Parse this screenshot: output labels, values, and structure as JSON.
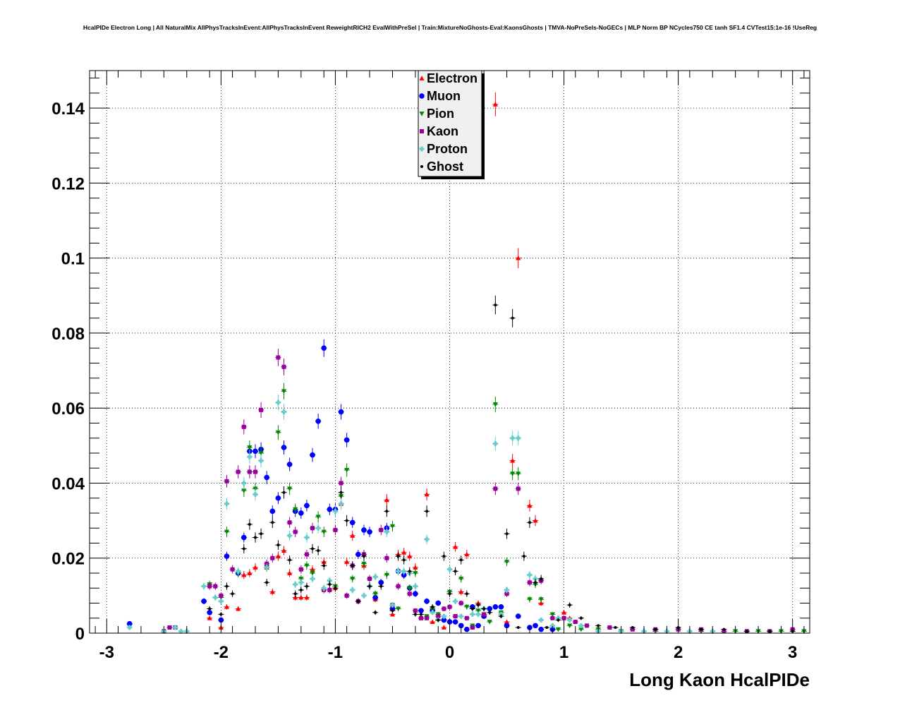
{
  "chart_data": {
    "type": "scatter",
    "title": "HcalPIDe Electron Long | All NaturalMix AllPhysTracksInEvent:AllPhysTracksInEvent ReweightRICH2 EvalWithPreSel | Train:MixtureNoGhosts-Eval:KaonsGhosts | TMVA-NoPreSels-NoGECs | MLP Norm BP NCycles750 CE tanh SF1.4 CVTest15:1e-16 !UseReg",
    "xlabel": "Long Kaon HcalPIDe",
    "ylabel": "",
    "xlim": [
      -3.15,
      3.15
    ],
    "ylim": [
      0,
      0.15
    ],
    "xticks": [
      -3,
      -2,
      -1,
      0,
      1,
      2,
      3
    ],
    "yticks": [
      0,
      0.02,
      0.04,
      0.06,
      0.08,
      0.1,
      0.12,
      0.14
    ],
    "xtick_labels": [
      "-3",
      "-2",
      "-1",
      "0",
      "1",
      "2",
      "3"
    ],
    "ytick_labels": [
      "0",
      "0.02",
      "0.04",
      "0.06",
      "0.08",
      "0.1",
      "0.12",
      "0.14"
    ],
    "grid": true,
    "legend_position": "top-center",
    "series": [
      {
        "name": "Electron",
        "color": "#ff0000",
        "marker": "triangle-up",
        "x": [
          -2.1,
          -2.0,
          -1.95,
          -1.85,
          -1.8,
          -1.75,
          -1.7,
          -1.6,
          -1.55,
          -1.5,
          -1.45,
          -1.4,
          -1.35,
          -1.3,
          -1.25,
          -1.2,
          -1.1,
          -1.0,
          -0.95,
          -0.9,
          -0.85,
          -0.75,
          -0.65,
          -0.55,
          -0.5,
          -0.45,
          -0.4,
          -0.35,
          -0.3,
          -0.25,
          -0.2,
          -0.15,
          -0.1,
          -0.05,
          0.05,
          0.1,
          0.15,
          0.25,
          0.3,
          0.4,
          0.5,
          0.55,
          0.6,
          0.7,
          0.75,
          0.8,
          1.0,
          1.05
        ],
        "y": [
          0.004,
          0.0015,
          0.007,
          0.0065,
          0.0155,
          0.016,
          0.0175,
          0.0175,
          0.011,
          0.0205,
          0.022,
          0.016,
          0.0095,
          0.0095,
          0.0095,
          0.017,
          0.019,
          0.012,
          0.0345,
          0.019,
          0.026,
          0.018,
          0.009,
          0.0355,
          0.005,
          0.021,
          0.0215,
          0.0205,
          0.0175,
          0.004,
          0.037,
          0.003,
          0.005,
          0.0015,
          0.023,
          0.011,
          0.021,
          0.008,
          0.0045,
          0.141,
          0.003,
          0.046,
          0.1,
          0.034,
          0.03,
          0.008,
          0.0055,
          0.004
        ]
      },
      {
        "name": "Muon",
        "color": "#0000ff",
        "marker": "circle",
        "x": [
          -2.8,
          -2.15,
          -2.1,
          -2.0,
          -1.95,
          -1.85,
          -1.8,
          -1.75,
          -1.7,
          -1.65,
          -1.6,
          -1.55,
          -1.5,
          -1.45,
          -1.4,
          -1.35,
          -1.3,
          -1.25,
          -1.2,
          -1.15,
          -1.1,
          -1.05,
          -1.0,
          -0.95,
          -0.9,
          -0.85,
          -0.8,
          -0.75,
          -0.7,
          -0.65,
          -0.6,
          -0.55,
          -0.5,
          -0.45,
          -0.4,
          -0.35,
          -0.3,
          -0.25,
          -0.2,
          -0.15,
          -0.1,
          -0.05,
          0.0,
          0.05,
          0.1,
          0.15,
          0.2,
          0.25,
          0.3,
          0.35,
          0.4,
          0.45,
          0.5,
          0.6,
          0.7,
          0.75,
          0.8,
          0.9
        ],
        "y": [
          0.0025,
          0.0085,
          0.0055,
          0.0035,
          0.0205,
          0.016,
          0.0255,
          0.0485,
          0.0485,
          0.049,
          0.0415,
          0.0325,
          0.036,
          0.0495,
          0.045,
          0.0325,
          0.032,
          0.034,
          0.0475,
          0.0565,
          0.076,
          0.033,
          0.033,
          0.059,
          0.0515,
          0.0295,
          0.021,
          0.0275,
          0.027,
          0.0095,
          0.0135,
          0.028,
          0.0065,
          0.0165,
          0.0155,
          0.012,
          0.0105,
          0.006,
          0.0085,
          0.006,
          0.008,
          0.0035,
          0.003,
          0.003,
          0.002,
          0.001,
          0.007,
          0.002,
          0.0045,
          0.0065,
          0.007,
          0.007,
          0.002,
          0.0045,
          0.0015,
          0.002,
          0.001,
          0.001
        ]
      },
      {
        "name": "Pion",
        "color": "#008800",
        "marker": "triangle-down",
        "x": [
          -2.1,
          -2.0,
          -1.95,
          -1.85,
          -1.8,
          -1.75,
          -1.7,
          -1.65,
          -1.6,
          -1.5,
          -1.45,
          -1.4,
          -1.35,
          -1.3,
          -1.25,
          -1.2,
          -1.15,
          -1.1,
          -1.0,
          -0.95,
          -0.9,
          -0.85,
          -0.75,
          -0.65,
          -0.55,
          -0.5,
          -0.45,
          -0.35,
          -0.3,
          -0.2,
          -0.15,
          -0.1,
          0.0,
          0.05,
          0.1,
          0.15,
          0.2,
          0.25,
          0.3,
          0.35,
          0.4,
          0.45,
          0.5,
          0.55,
          0.6,
          0.7,
          0.75,
          0.8,
          0.9,
          0.95,
          1.05,
          1.15,
          1.3,
          1.5,
          1.8,
          2.2,
          2.5,
          2.7,
          2.9,
          3.1
        ],
        "y": [
          0.013,
          0.0095,
          0.027,
          0.016,
          0.038,
          0.0495,
          0.0385,
          0.048,
          0.0175,
          0.0535,
          0.0645,
          0.0385,
          0.033,
          0.0145,
          0.018,
          0.016,
          0.031,
          0.027,
          0.0125,
          0.0365,
          0.0435,
          0.0145,
          0.0185,
          0.0105,
          0.0155,
          0.0285,
          0.0065,
          0.012,
          0.016,
          0.0045,
          0.0065,
          0.005,
          0.011,
          0.0045,
          0.0145,
          0.007,
          0.002,
          0.006,
          0.005,
          0.003,
          0.061,
          0.0055,
          0.019,
          0.0425,
          0.0425,
          0.009,
          0.013,
          0.009,
          0.005,
          0.001,
          0.002,
          0.001,
          0.001,
          0.0005,
          0.0005,
          0.0005,
          0.0005,
          0.0005,
          0.0005,
          0.0005
        ]
      },
      {
        "name": "Kaon",
        "color": "#990099",
        "marker": "square",
        "x": [
          -2.5,
          -2.45,
          -2.4,
          -2.1,
          -2.05,
          -2.0,
          -1.95,
          -1.9,
          -1.85,
          -1.8,
          -1.75,
          -1.7,
          -1.65,
          -1.6,
          -1.55,
          -1.5,
          -1.45,
          -1.4,
          -1.35,
          -1.3,
          -1.25,
          -1.2,
          -1.1,
          -1.05,
          -1.0,
          -0.95,
          -0.9,
          -0.85,
          -0.8,
          -0.75,
          -0.7,
          -0.6,
          -0.55,
          -0.5,
          -0.45,
          -0.35,
          -0.3,
          -0.25,
          -0.2,
          -0.1,
          -0.05,
          0.0,
          0.05,
          0.1,
          0.15,
          0.2,
          0.3,
          0.4,
          0.5,
          0.6,
          0.7,
          0.8,
          0.9,
          1.0,
          1.1,
          1.2,
          1.4,
          1.6,
          1.8,
          2.0,
          2.2,
          2.4,
          2.6,
          2.8,
          3.0
        ],
        "y": [
          0.0005,
          0.0015,
          0.0015,
          0.0125,
          0.0125,
          0.01,
          0.0405,
          0.017,
          0.043,
          0.055,
          0.043,
          0.043,
          0.0595,
          0.0185,
          0.02,
          0.0735,
          0.071,
          0.0295,
          0.027,
          0.017,
          0.021,
          0.028,
          0.0115,
          0.0115,
          0.0275,
          0.04,
          0.01,
          0.018,
          0.0085,
          0.021,
          0.0145,
          0.0275,
          0.02,
          0.0075,
          0.0125,
          0.0105,
          0.006,
          0.004,
          0.004,
          0.0045,
          0.0065,
          0.007,
          0.0045,
          0.008,
          0.004,
          0.0015,
          0.005,
          0.0385,
          0.0105,
          0.0385,
          0.0135,
          0.014,
          0.004,
          0.004,
          0.003,
          0.002,
          0.0015,
          0.001,
          0.001,
          0.001,
          0.001,
          0.0005,
          0.0005,
          0.0005,
          0.001
        ]
      },
      {
        "name": "Proton",
        "color": "#66cccc",
        "marker": "cross",
        "x": [
          -2.8,
          -2.5,
          -2.4,
          -2.35,
          -2.3,
          -2.15,
          -2.05,
          -2.0,
          -1.95,
          -1.85,
          -1.8,
          -1.75,
          -1.7,
          -1.65,
          -1.6,
          -1.5,
          -1.45,
          -1.4,
          -1.35,
          -1.3,
          -1.25,
          -1.2,
          -1.15,
          -1.1,
          -1.05,
          -1.0,
          -0.95,
          -0.85,
          -0.75,
          -0.7,
          -0.65,
          -0.55,
          -0.5,
          -0.45,
          -0.4,
          -0.35,
          -0.3,
          -0.2,
          -0.15,
          -0.1,
          -0.05,
          0.0,
          0.05,
          0.1,
          0.2,
          0.25,
          0.3,
          0.4,
          0.45,
          0.5,
          0.55,
          0.6,
          0.7,
          0.75,
          0.8,
          0.9,
          0.95,
          1.05,
          1.15,
          1.3,
          1.5,
          1.7,
          1.9,
          2.1,
          2.3
        ],
        "y": [
          0.0015,
          0.0005,
          0.0015,
          0.0005,
          0.0005,
          0.0125,
          0.0095,
          0.0085,
          0.0345,
          0.0165,
          0.04,
          0.047,
          0.037,
          0.046,
          0.0175,
          0.0615,
          0.059,
          0.026,
          0.013,
          0.0135,
          0.0255,
          0.0145,
          0.028,
          0.012,
          0.014,
          0.0325,
          0.0345,
          0.0115,
          0.01,
          0.0125,
          0.015,
          0.027,
          0.0075,
          0.0165,
          0.0165,
          0.016,
          0.0125,
          0.025,
          0.0055,
          0.0035,
          0.0045,
          0.017,
          0.0085,
          0.0045,
          0.005,
          0.005,
          0.0065,
          0.0505,
          0.005,
          0.0115,
          0.052,
          0.052,
          0.0155,
          0.0145,
          0.0035,
          0.002,
          0.004,
          0.0035,
          0.002,
          0.0005,
          0.0005,
          0.0005,
          0.0005,
          0.0005,
          0.0005
        ]
      },
      {
        "name": "Ghost",
        "color": "#000000",
        "marker": "dot",
        "x": [
          -2.1,
          -2.0,
          -1.95,
          -1.9,
          -1.8,
          -1.75,
          -1.7,
          -1.65,
          -1.6,
          -1.55,
          -1.5,
          -1.45,
          -1.4,
          -1.35,
          -1.3,
          -1.25,
          -1.2,
          -1.15,
          -1.1,
          -1.05,
          -1.0,
          -0.95,
          -0.9,
          -0.85,
          -0.8,
          -0.75,
          -0.7,
          -0.65,
          -0.6,
          -0.55,
          -0.5,
          -0.45,
          -0.4,
          -0.35,
          -0.3,
          -0.25,
          -0.2,
          -0.15,
          -0.1,
          -0.05,
          0.0,
          0.05,
          0.1,
          0.15,
          0.2,
          0.25,
          0.3,
          0.35,
          0.4,
          0.45,
          0.5,
          0.55,
          0.6,
          0.65,
          0.7,
          0.75,
          0.8,
          0.85,
          0.95,
          1.05,
          1.15,
          1.3,
          1.45,
          1.6,
          1.8,
          2.0,
          2.2,
          2.4,
          2.6,
          2.8,
          3.0
        ],
        "y": [
          0.0065,
          0.005,
          0.0125,
          0.0105,
          0.0225,
          0.029,
          0.0255,
          0.0265,
          0.0135,
          0.0295,
          0.0235,
          0.0375,
          0.0195,
          0.0105,
          0.0115,
          0.0125,
          0.0225,
          0.022,
          0.018,
          0.013,
          0.012,
          0.0375,
          0.03,
          0.018,
          0.0085,
          0.0205,
          0.0125,
          0.0055,
          0.0125,
          0.0325,
          0.006,
          0.0205,
          0.0195,
          0.0165,
          0.005,
          0.005,
          0.0325,
          0.007,
          0.0035,
          0.0205,
          0.0105,
          0.0165,
          0.0195,
          0.0105,
          0.0065,
          0.0075,
          0.0065,
          0.0055,
          0.0875,
          0.0045,
          0.0265,
          0.084,
          0.0015,
          0.0205,
          0.0295,
          0.0135,
          0.0145,
          0.0015,
          0.0035,
          0.0075,
          0.004,
          0.002,
          0.0015,
          0.0015,
          0.001,
          0.0015,
          0.001,
          0.001,
          0.0005,
          0.0005,
          0.0005
        ]
      }
    ]
  }
}
